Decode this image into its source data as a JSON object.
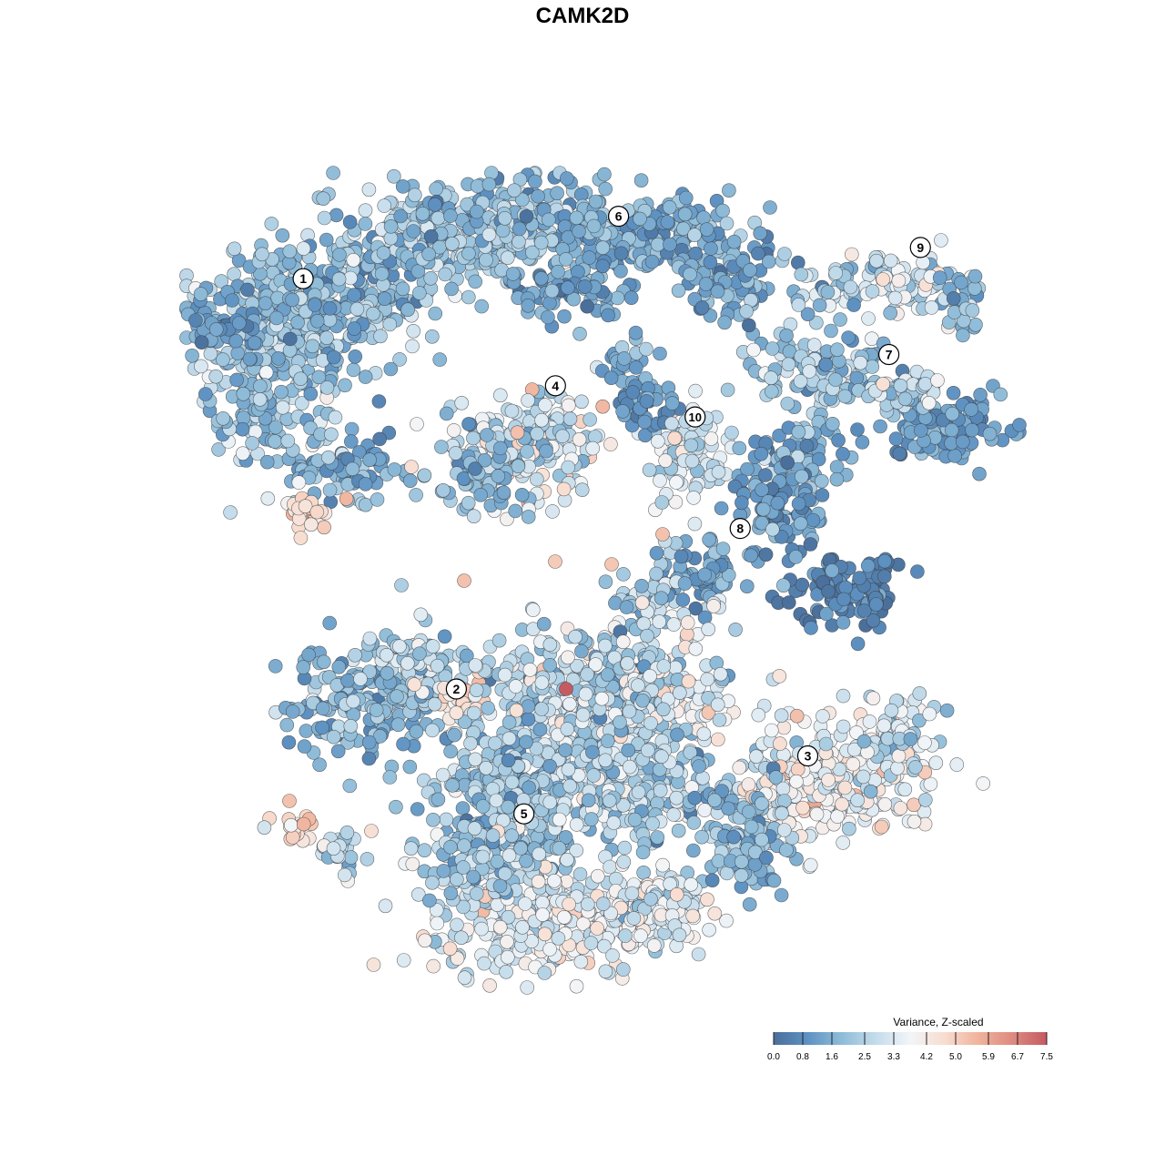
{
  "chart_data": {
    "type": "scatter",
    "title": "CAMK2D",
    "xlabel": "",
    "ylabel": "",
    "grid": false,
    "legend_placement": "bottom-right",
    "colorbar": {
      "title": "Variance, Z-scaled",
      "ticks": [
        "0.0",
        "0.8",
        "1.6",
        "2.5",
        "3.3",
        "4.2",
        "5.0",
        "5.9",
        "6.7",
        "7.5"
      ],
      "tick_values": [
        0.0,
        0.8,
        1.6,
        2.5,
        3.3,
        4.2,
        5.0,
        5.9,
        6.7,
        7.5
      ],
      "range": [
        0.0,
        7.5
      ],
      "colors": [
        "#4a6f9b",
        "#5e92c2",
        "#8fbcd8",
        "#c4dceb",
        "#f2f5f8",
        "#f8ddd0",
        "#f0b39c",
        "#dd8a80",
        "#c55a62"
      ]
    },
    "clusters": [
      {
        "label": "1",
        "x": -6.2,
        "y": 6.2,
        "mean": 1.9
      },
      {
        "label": "2",
        "x": -2.8,
        "y": -3.0,
        "mean": 2.3
      },
      {
        "label": "3",
        "x": 5.0,
        "y": -4.5,
        "mean": 3.6
      },
      {
        "label": "4",
        "x": -0.6,
        "y": 3.8,
        "mean": 3.1
      },
      {
        "label": "5",
        "x": -1.3,
        "y": -5.8,
        "mean": 3.3
      },
      {
        "label": "6",
        "x": 0.8,
        "y": 7.6,
        "mean": 1.7
      },
      {
        "label": "7",
        "x": 6.8,
        "y": 4.5,
        "mean": 1.6
      },
      {
        "label": "8",
        "x": 3.5,
        "y": 0.6,
        "mean": 1.2
      },
      {
        "label": "9",
        "x": 7.5,
        "y": 6.9,
        "mean": 3.0
      },
      {
        "label": "10",
        "x": 2.5,
        "y": 3.1,
        "mean": 3.0
      }
    ]
  }
}
